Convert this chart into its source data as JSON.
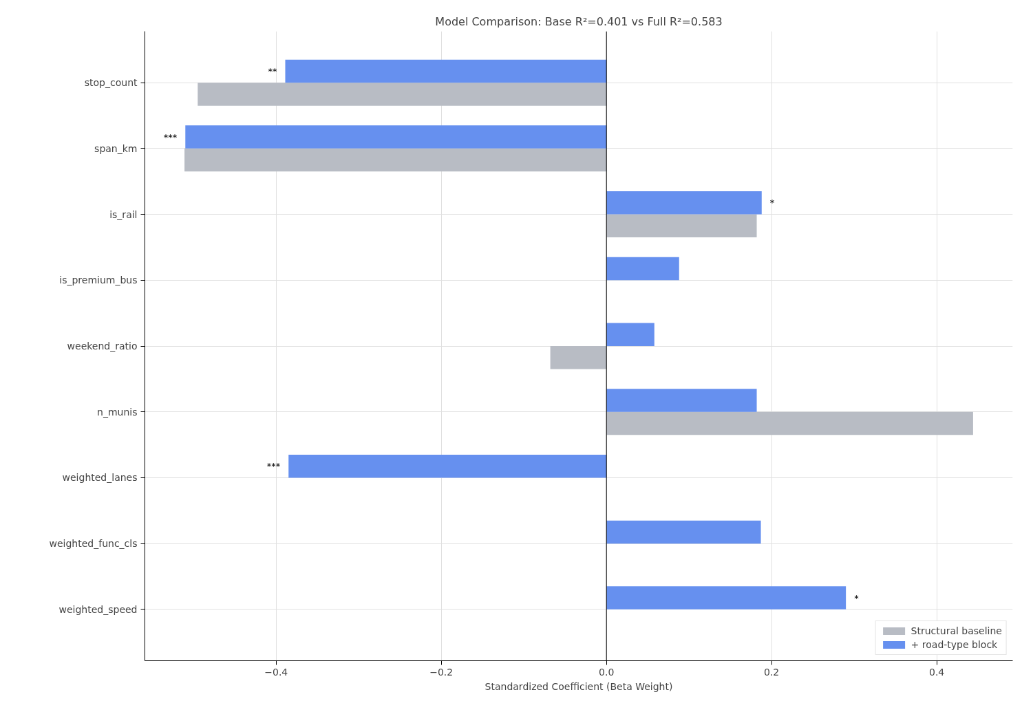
{
  "chart_data": {
    "type": "bar",
    "orientation": "horizontal",
    "title": "Model Comparison: Base R²=0.401 vs Full R²=0.583",
    "xlabel": "Standardized Coefficient (Beta Weight)",
    "categories": [
      "stop_count",
      "span_km",
      "is_rail",
      "is_premium_bus",
      "weekend_ratio",
      "n_munis",
      "weighted_lanes",
      "weighted_func_cls",
      "weighted_speed"
    ],
    "series": [
      {
        "name": "Structural baseline",
        "color": "#b8bcc4",
        "values": [
          -0.495,
          -0.511,
          0.182,
          null,
          -0.068,
          0.444,
          null,
          null,
          null
        ]
      },
      {
        "name": "+ road-type block",
        "color": "#6690ef",
        "values": [
          -0.389,
          -0.51,
          0.188,
          0.088,
          0.058,
          0.182,
          -0.385,
          0.187,
          0.29
        ]
      }
    ],
    "xlim": [
      -0.559,
      0.492
    ],
    "xticks": [
      {
        "value": -0.4,
        "label": "−0.4"
      },
      {
        "value": -0.2,
        "label": "−0.2"
      },
      {
        "value": 0.0,
        "label": "0.0"
      },
      {
        "value": 0.2,
        "label": "0.2"
      },
      {
        "value": 0.4,
        "label": "0.4"
      }
    ],
    "ref_lines": [
      {
        "axis": "x",
        "value": 0,
        "color": "#000000"
      }
    ],
    "annotations": [
      {
        "text": "**",
        "x": -0.389,
        "y": "stop_count"
      },
      {
        "text": "***",
        "x": -0.51,
        "y": "span_km"
      },
      {
        "text": "*",
        "x": 0.188,
        "y": "is_rail"
      },
      {
        "text": "***",
        "x": -0.385,
        "y": "weighted_lanes"
      },
      {
        "text": "*",
        "x": 0.29,
        "y": "weighted_speed"
      }
    ],
    "grid": true,
    "legend": "bottom right"
  }
}
